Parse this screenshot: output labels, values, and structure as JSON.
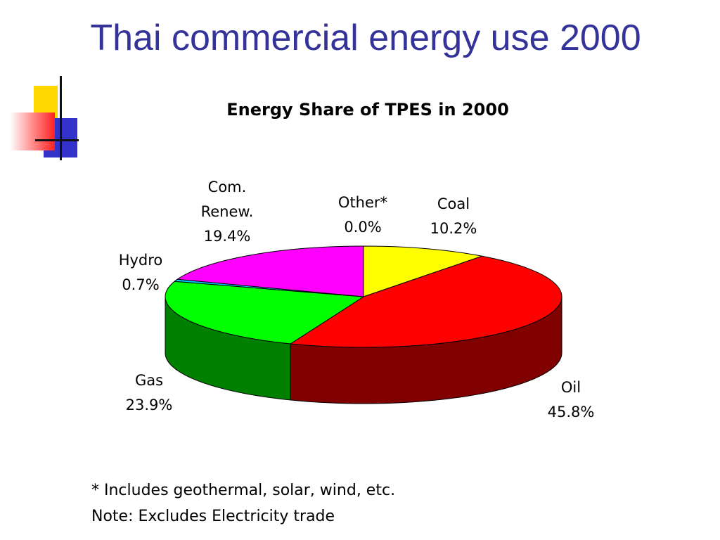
{
  "slide": {
    "title": "Thai commercial energy use 2000"
  },
  "footnotes": [
    "* Includes geothermal, solar, wind, etc.",
    "Note: Excludes Electricity trade"
  ],
  "chart_data": {
    "type": "pie",
    "title": "Energy Share of TPES in 2000",
    "three_d": true,
    "slices": [
      {
        "label": "Coal",
        "label_lines": [
          "Coal"
        ],
        "value": 10.2,
        "value_text": "10.2%",
        "color": "#ffff00",
        "side_color": "#808000"
      },
      {
        "label": "Oil",
        "label_lines": [
          "Oil"
        ],
        "value": 45.8,
        "value_text": "45.8%",
        "color": "#ff0000",
        "side_color": "#800000"
      },
      {
        "label": "Gas",
        "label_lines": [
          "Gas"
        ],
        "value": 23.9,
        "value_text": "23.9%",
        "color": "#00ff00",
        "side_color": "#008000"
      },
      {
        "label": "Hydro",
        "label_lines": [
          "Hydro"
        ],
        "value": 0.7,
        "value_text": "0.7%",
        "color": "#00ccff",
        "side_color": "#006680"
      },
      {
        "label": "Com. Renew.",
        "label_lines": [
          "Com.",
          "Renew."
        ],
        "value": 19.4,
        "value_text": "19.4%",
        "color": "#ff00ff",
        "side_color": "#800080"
      },
      {
        "label": "Other*",
        "label_lines": [
          "Other*"
        ],
        "value": 0.0,
        "value_text": "0.0%",
        "color": "#0000ff",
        "side_color": "#000080"
      }
    ]
  }
}
